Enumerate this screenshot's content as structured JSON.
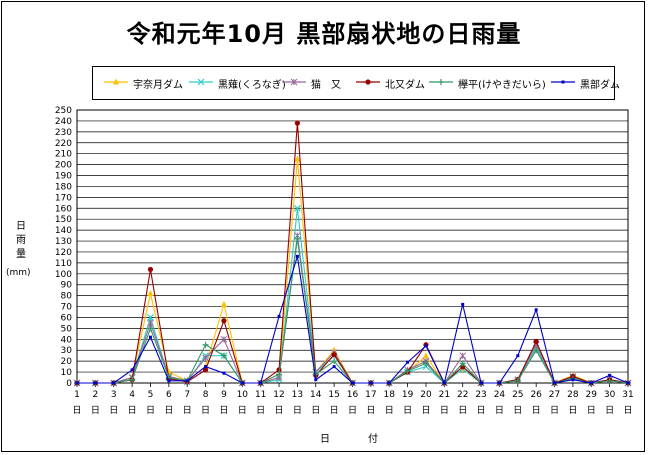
{
  "title": "令和元年10月 黒部扇状地の日雨量",
  "chart_data": {
    "type": "line",
    "title": "令和元年10月 黒部扇状地の日雨量",
    "xlabel": "日　付",
    "ylabel": "日雨量",
    "yunit": "(mm)",
    "ylim": [
      0,
      250
    ],
    "ytick_step": 10,
    "grid": true,
    "legend_position": "top",
    "x": [
      1,
      2,
      3,
      4,
      5,
      6,
      7,
      8,
      9,
      10,
      11,
      12,
      13,
      14,
      15,
      16,
      17,
      18,
      19,
      20,
      21,
      22,
      23,
      24,
      25,
      26,
      27,
      28,
      29,
      30,
      31
    ],
    "x_tick_suffix": "日",
    "series": [
      {
        "name": "宇奈月ダム",
        "color": "#FFC000",
        "marker": "triangle",
        "values": [
          0,
          0,
          0,
          5,
          82,
          10,
          2,
          15,
          72,
          0,
          0,
          5,
          205,
          10,
          30,
          0,
          0,
          0,
          10,
          25,
          0,
          13,
          0,
          0,
          3,
          32,
          0,
          7,
          0,
          3,
          0
        ]
      },
      {
        "name": "黒薙(くろなぎ)",
        "color": "#33CCCC",
        "marker": "x",
        "values": [
          0,
          0,
          0,
          5,
          60,
          5,
          1,
          25,
          25,
          0,
          0,
          3,
          160,
          10,
          25,
          0,
          0,
          0,
          10,
          15,
          0,
          13,
          0,
          0,
          3,
          32,
          0,
          5,
          0,
          3,
          0
        ]
      },
      {
        "name": "猫　又",
        "color": "#996699",
        "marker": "star",
        "values": [
          0,
          0,
          0,
          5,
          55,
          6,
          2,
          23,
          40,
          0,
          0,
          5,
          135,
          10,
          28,
          0,
          0,
          0,
          12,
          20,
          0,
          25,
          0,
          0,
          3,
          35,
          0,
          6,
          0,
          3,
          0
        ]
      },
      {
        "name": "北又ダム",
        "color": "#990000",
        "marker": "circle",
        "values": [
          0,
          0,
          0,
          3,
          104,
          4,
          1,
          12,
          57,
          0,
          0,
          12,
          238,
          7,
          26,
          0,
          0,
          0,
          10,
          35,
          0,
          15,
          0,
          0,
          3,
          38,
          0,
          6,
          0,
          3,
          0
        ]
      },
      {
        "name": "欅平(けやきだいら)",
        "color": "#339966",
        "marker": "plus",
        "values": [
          0,
          0,
          0,
          3,
          50,
          5,
          2,
          35,
          25,
          0,
          0,
          8,
          132,
          8,
          20,
          0,
          0,
          0,
          11,
          18,
          0,
          18,
          0,
          0,
          2,
          30,
          0,
          4,
          0,
          2,
          0
        ]
      },
      {
        "name": "黒部ダム",
        "color": "#0000CC",
        "marker": "dot",
        "values": [
          0,
          0,
          0,
          12,
          42,
          2,
          2,
          15,
          9,
          0,
          0,
          61,
          116,
          3,
          15,
          0,
          0,
          0,
          19,
          34,
          0,
          72,
          0,
          0,
          25,
          67,
          0,
          3,
          0,
          7,
          0
        ]
      }
    ]
  }
}
